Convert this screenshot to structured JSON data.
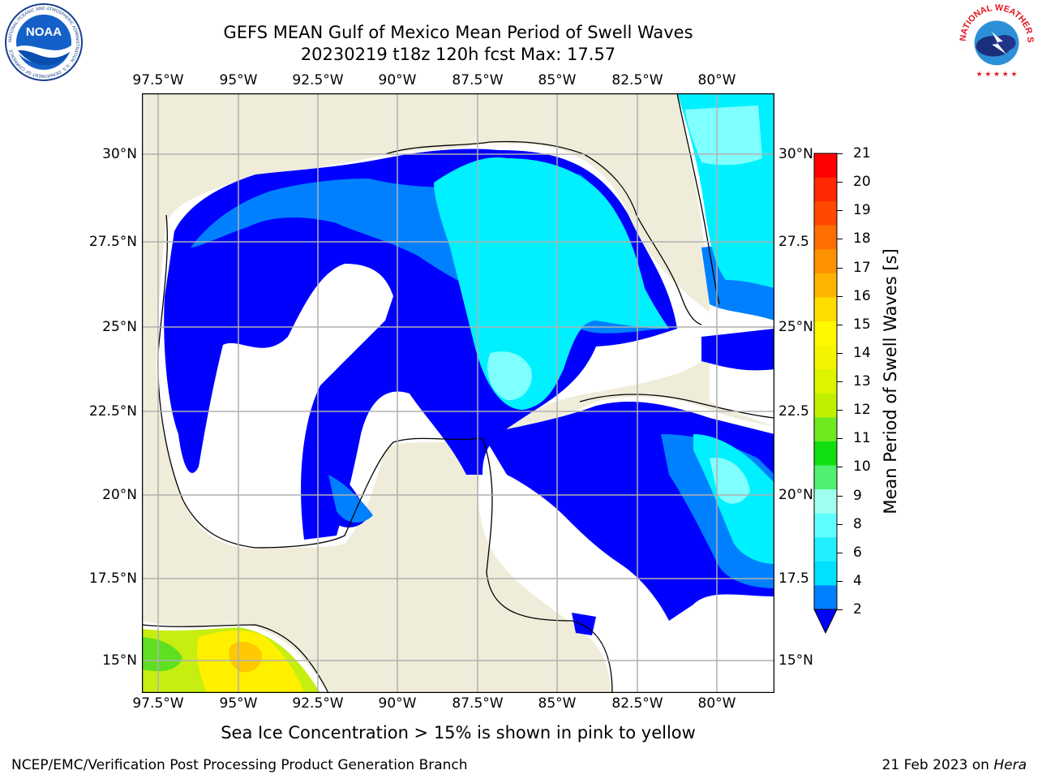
{
  "title_line1": "GEFS MEAN Gulf of Mexico Mean Period of Swell Waves",
  "title_line2": "20230219 t18z 120h fcst   Max: 17.57",
  "longitude_labels": [
    "97.5°W",
    "95°W",
    "92.5°W",
    "90°W",
    "87.5°W",
    "85°W",
    "82.5°W",
    "80°W"
  ],
  "latitude_labels": [
    "30°N",
    "27.5°N",
    "25°N",
    "22.5°N",
    "20°N",
    "17.5°N",
    "15°N"
  ],
  "right_latitude_labels": [
    "30°N",
    "27.5",
    "25°N",
    "22.5",
    "20°N",
    "17.5",
    "15°N"
  ],
  "colorbar": {
    "label": "Mean Period of Swell Waves [s]",
    "ticks": [
      "21",
      "20",
      "19",
      "18",
      "17",
      "16",
      "15",
      "14",
      "13",
      "12",
      "11",
      "10",
      "9",
      "8",
      "6",
      "4",
      "2"
    ],
    "colors": [
      "#ff0000",
      "#ff2800",
      "#ff4800",
      "#ff6e00",
      "#ff9200",
      "#ffb400",
      "#ffdc00",
      "#fff800",
      "#f4f400",
      "#dcf400",
      "#c0f000",
      "#70ea20",
      "#10e010",
      "#50f070",
      "#a0fff0",
      "#60ffff",
      "#20f0ff",
      "#00e0ff",
      "#0080ff"
    ]
  },
  "logos": {
    "noaa": "NOAA",
    "noaa_ring": "NATIONAL OCEANIC AND ATMOSPHERIC ADMINISTRATION · U.S. DEPARTMENT OF COMMERCE",
    "nws_ring": "NATIONAL WEATHER SERVICE"
  },
  "subnote": "Sea Ice Concentration > 15% is shown in pink to yellow",
  "footer_left": "NCEP/EMC/Verification Post Processing Product Generation Branch",
  "footer_right_prefix": "21 Feb 2023 on ",
  "footer_right_host": "Hera",
  "colors": {
    "land": "#efedda",
    "deep_blue": "#0000ff",
    "mid_blue": "#0080ff",
    "cyan": "#00f0ff",
    "light_cyan": "#80ffff"
  }
}
